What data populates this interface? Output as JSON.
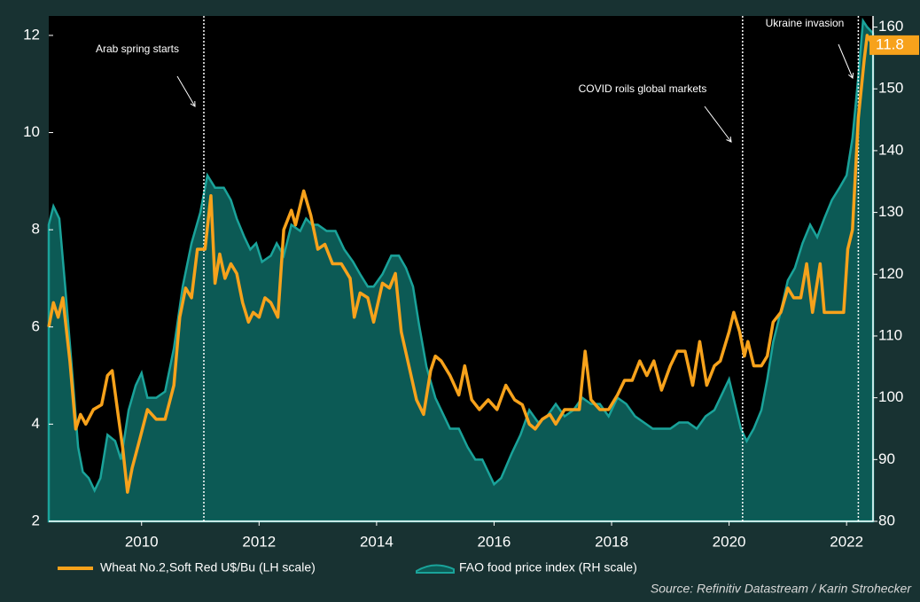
{
  "chart_data": {
    "type": "line_area",
    "source": "Source: Refinitiv Datastream / Karin Strohecker",
    "xlim": [
      2008.42,
      2022.45
    ],
    "xticks": [
      2010,
      2012,
      2014,
      2016,
      2018,
      2020,
      2022
    ],
    "ylim": [
      2,
      12.4
    ],
    "yticks": [
      2,
      4,
      6,
      8,
      10,
      12
    ],
    "y2lim": [
      80,
      161.8
    ],
    "y2ticks": [
      80,
      90,
      100,
      110,
      120,
      130,
      140,
      150,
      160
    ],
    "events": [
      {
        "label": "Arab spring starts",
        "x": 2011.06
      },
      {
        "label": "COVID roils global markets",
        "x": 2020.23
      },
      {
        "label": "Ukraine invasion",
        "x": 2022.2
      }
    ],
    "series": [
      {
        "name": "Wheat No.2,Soft Red U$/Bu (LH scale)",
        "color": "#f7a21b",
        "type": "line",
        "x": [
          2008.42,
          2008.5,
          2008.58,
          2008.66,
          2008.78,
          2008.88,
          2008.96,
          2009.05,
          2009.18,
          2009.32,
          2009.42,
          2009.5,
          2009.6,
          2009.68,
          2009.76,
          2009.84,
          2009.95,
          2010.1,
          2010.25,
          2010.4,
          2010.55,
          2010.65,
          2010.75,
          2010.85,
          2010.95,
          2011.08,
          2011.18,
          2011.25,
          2011.33,
          2011.42,
          2011.52,
          2011.62,
          2011.72,
          2011.82,
          2011.9,
          2012.0,
          2012.1,
          2012.2,
          2012.32,
          2012.42,
          2012.55,
          2012.62,
          2012.76,
          2012.88,
          2013.0,
          2013.12,
          2013.25,
          2013.4,
          2013.55,
          2013.62,
          2013.72,
          2013.85,
          2013.95,
          2014.1,
          2014.22,
          2014.32,
          2014.42,
          2014.55,
          2014.68,
          2014.8,
          2014.92,
          2015.0,
          2015.1,
          2015.25,
          2015.4,
          2015.5,
          2015.62,
          2015.75,
          2015.9,
          2016.05,
          2016.2,
          2016.35,
          2016.48,
          2016.6,
          2016.7,
          2016.82,
          2016.95,
          2017.05,
          2017.2,
          2017.32,
          2017.45,
          2017.55,
          2017.65,
          2017.8,
          2017.95,
          2018.1,
          2018.22,
          2018.35,
          2018.48,
          2018.6,
          2018.72,
          2018.85,
          2019.0,
          2019.12,
          2019.25,
          2019.38,
          2019.5,
          2019.62,
          2019.75,
          2019.85,
          2020.0,
          2020.08,
          2020.18,
          2020.26,
          2020.32,
          2020.42,
          2020.55,
          2020.65,
          2020.75,
          2020.88,
          2021.0,
          2021.1,
          2021.22,
          2021.32,
          2021.42,
          2021.55,
          2021.62,
          2021.8,
          2021.95,
          2022.02,
          2022.1,
          2022.2,
          2022.3,
          2022.35,
          2022.45
        ],
        "values": [
          6.0,
          6.5,
          6.2,
          6.6,
          5.3,
          3.9,
          4.2,
          4.0,
          4.3,
          4.4,
          5.0,
          5.1,
          4.2,
          3.5,
          2.6,
          3.1,
          3.6,
          4.3,
          4.1,
          4.1,
          4.8,
          6.2,
          6.8,
          6.6,
          7.6,
          7.6,
          8.7,
          6.9,
          7.5,
          7.0,
          7.3,
          7.1,
          6.5,
          6.1,
          6.3,
          6.2,
          6.6,
          6.5,
          6.2,
          8.0,
          8.4,
          8.1,
          8.8,
          8.3,
          7.6,
          7.7,
          7.3,
          7.3,
          7.0,
          6.2,
          6.7,
          6.6,
          6.1,
          6.9,
          6.8,
          7.1,
          5.9,
          5.2,
          4.5,
          4.2,
          5.1,
          5.4,
          5.3,
          5.0,
          4.6,
          5.2,
          4.5,
          4.3,
          4.5,
          4.3,
          4.8,
          4.5,
          4.4,
          4.0,
          3.9,
          4.1,
          4.2,
          4.0,
          4.3,
          4.3,
          4.3,
          5.5,
          4.5,
          4.3,
          4.3,
          4.6,
          4.9,
          4.9,
          5.3,
          5.0,
          5.3,
          4.7,
          5.2,
          5.5,
          5.5,
          4.8,
          5.7,
          4.8,
          5.2,
          5.3,
          5.9,
          6.3,
          5.9,
          5.4,
          5.7,
          5.2,
          5.2,
          5.4,
          6.1,
          6.3,
          6.8,
          6.6,
          6.6,
          7.3,
          6.3,
          7.3,
          6.3,
          6.3,
          6.3,
          7.6,
          8.0,
          10.3,
          11.5,
          12.0,
          11.8
        ]
      },
      {
        "name": "FAO food price index (RH scale)",
        "color": "#1aa39a",
        "fill": "#0c5a55",
        "type": "area",
        "axis": "y2",
        "x": [
          2008.42,
          2008.5,
          2008.6,
          2008.7,
          2008.82,
          2008.92,
          2009.0,
          2009.1,
          2009.2,
          2009.3,
          2009.42,
          2009.55,
          2009.65,
          2009.78,
          2009.9,
          2010.0,
          2010.1,
          2010.25,
          2010.4,
          2010.55,
          2010.7,
          2010.85,
          2011.0,
          2011.12,
          2011.25,
          2011.4,
          2011.52,
          2011.62,
          2011.75,
          2011.85,
          2011.95,
          2012.05,
          2012.2,
          2012.3,
          2012.42,
          2012.55,
          2012.7,
          2012.8,
          2012.9,
          2013.0,
          2013.15,
          2013.3,
          2013.45,
          2013.6,
          2013.72,
          2013.85,
          2013.95,
          2014.1,
          2014.25,
          2014.38,
          2014.5,
          2014.62,
          2014.72,
          2014.85,
          2015.0,
          2015.15,
          2015.25,
          2015.4,
          2015.55,
          2015.68,
          2015.8,
          2015.9,
          2016.0,
          2016.12,
          2016.3,
          2016.45,
          2016.6,
          2016.75,
          2016.9,
          2017.05,
          2017.2,
          2017.35,
          2017.5,
          2017.65,
          2017.8,
          2017.95,
          2018.1,
          2018.25,
          2018.4,
          2018.55,
          2018.7,
          2018.85,
          2019.0,
          2019.15,
          2019.3,
          2019.45,
          2019.6,
          2019.75,
          2019.9,
          2020.0,
          2020.1,
          2020.2,
          2020.3,
          2020.42,
          2020.55,
          2020.65,
          2020.75,
          2020.88,
          2021.0,
          2021.12,
          2021.25,
          2021.38,
          2021.5,
          2021.62,
          2021.75,
          2021.88,
          2022.0,
          2022.1,
          2022.2,
          2022.28,
          2022.35,
          2022.45
        ],
        "values": [
          128,
          131,
          129,
          118,
          104,
          92,
          88,
          87,
          85,
          87,
          94,
          93,
          90,
          98,
          102,
          104,
          100,
          100,
          101,
          108,
          118,
          125,
          130,
          136,
          134,
          134,
          132,
          129,
          126,
          124,
          125,
          122,
          123,
          125,
          123,
          128,
          127,
          129,
          128,
          128,
          127,
          127,
          124,
          122,
          120,
          118,
          118,
          120,
          123,
          123,
          121,
          118,
          112,
          105,
          100,
          97,
          95,
          95,
          92,
          90,
          90,
          88,
          86,
          87,
          91,
          94,
          98,
          96,
          97,
          99,
          97,
          98,
          100,
          99,
          99,
          97,
          100,
          99,
          97,
          96,
          95,
          95,
          95,
          96,
          96,
          95,
          97,
          98,
          101,
          103,
          99,
          95,
          93,
          95,
          98,
          103,
          109,
          114,
          119,
          121,
          125,
          128,
          126,
          129,
          132,
          134,
          136,
          142,
          152,
          161,
          160,
          159
        ]
      }
    ]
  }
}
